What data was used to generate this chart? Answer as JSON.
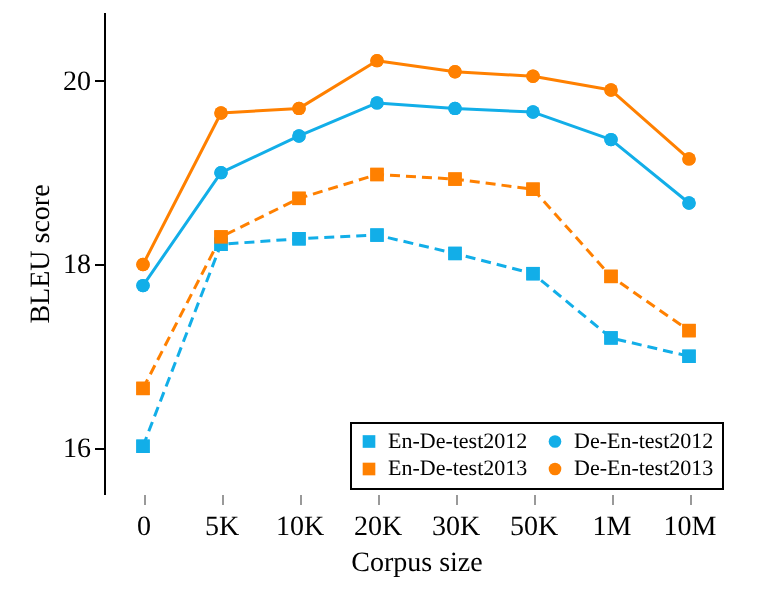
{
  "chart_data": {
    "type": "line",
    "xlabel": "Corpus size",
    "ylabel": "BLEU score",
    "categories": [
      "0",
      "5K",
      "10K",
      "20K",
      "30K",
      "50K",
      "1M",
      "10M"
    ],
    "series": [
      {
        "name": "En-De-test2012",
        "color": "#12aee8",
        "line_style": "dashed",
        "marker": "square",
        "values": [
          16.02,
          18.22,
          18.28,
          18.32,
          18.12,
          17.9,
          17.2,
          17.0
        ]
      },
      {
        "name": "En-De-test2013",
        "color": "#ff8000",
        "line_style": "dashed",
        "marker": "square",
        "values": [
          16.65,
          18.3,
          18.72,
          18.98,
          18.93,
          18.82,
          17.87,
          17.28
        ]
      },
      {
        "name": "De-En-test2012",
        "color": "#12aee8",
        "line_style": "solid",
        "marker": "circle",
        "values": [
          17.77,
          19.0,
          19.4,
          19.76,
          19.7,
          19.66,
          19.36,
          18.67
        ]
      },
      {
        "name": "De-En-test2013",
        "color": "#ff8000",
        "line_style": "solid",
        "marker": "circle",
        "values": [
          18.0,
          19.65,
          19.7,
          20.22,
          20.1,
          20.05,
          19.9,
          19.15
        ]
      }
    ],
    "ylim": [
      15.5,
      20.75
    ],
    "yticks": [
      16,
      18,
      20
    ],
    "grid": false,
    "legend": "bottom right"
  }
}
